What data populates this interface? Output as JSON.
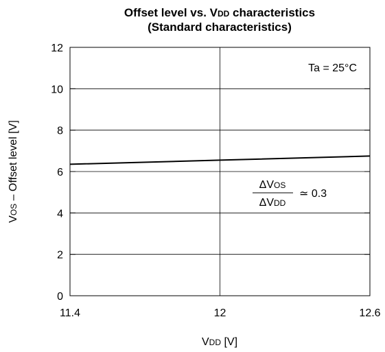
{
  "chart_data": {
    "type": "line",
    "title_line1": {
      "main": "Offset level vs. V",
      "sub": "DD",
      "rest": " characteristics"
    },
    "title_line2": "(Standard characteristics)",
    "xlabel": {
      "main": "V",
      "sub": "DD",
      "rest": " [V]"
    },
    "ylabel": {
      "main": "V",
      "sub": "OS",
      "rest": " – Offset level [V]"
    },
    "xlim": [
      11.4,
      12.6
    ],
    "ylim": [
      0,
      12
    ],
    "x_ticks": [
      11.4,
      12,
      12.6
    ],
    "x_tick_labels": [
      "11.4",
      "12",
      "12.6"
    ],
    "y_ticks": [
      0,
      2,
      4,
      6,
      8,
      10,
      12
    ],
    "y_tick_labels": [
      "0",
      "2",
      "4",
      "6",
      "8",
      "10",
      "12"
    ],
    "grid": true,
    "series": [
      {
        "x": [
          11.4,
          12.0,
          12.6
        ],
        "y": [
          6.35,
          6.55,
          6.75
        ]
      }
    ],
    "annotations": {
      "condition": "Ta = 25°C",
      "ratio_numerator": {
        "main": "ΔV",
        "sub": "OS"
      },
      "ratio_denominator": {
        "main": "ΔV",
        "sub": "DD"
      },
      "ratio_value": "≃ 0.3"
    }
  }
}
